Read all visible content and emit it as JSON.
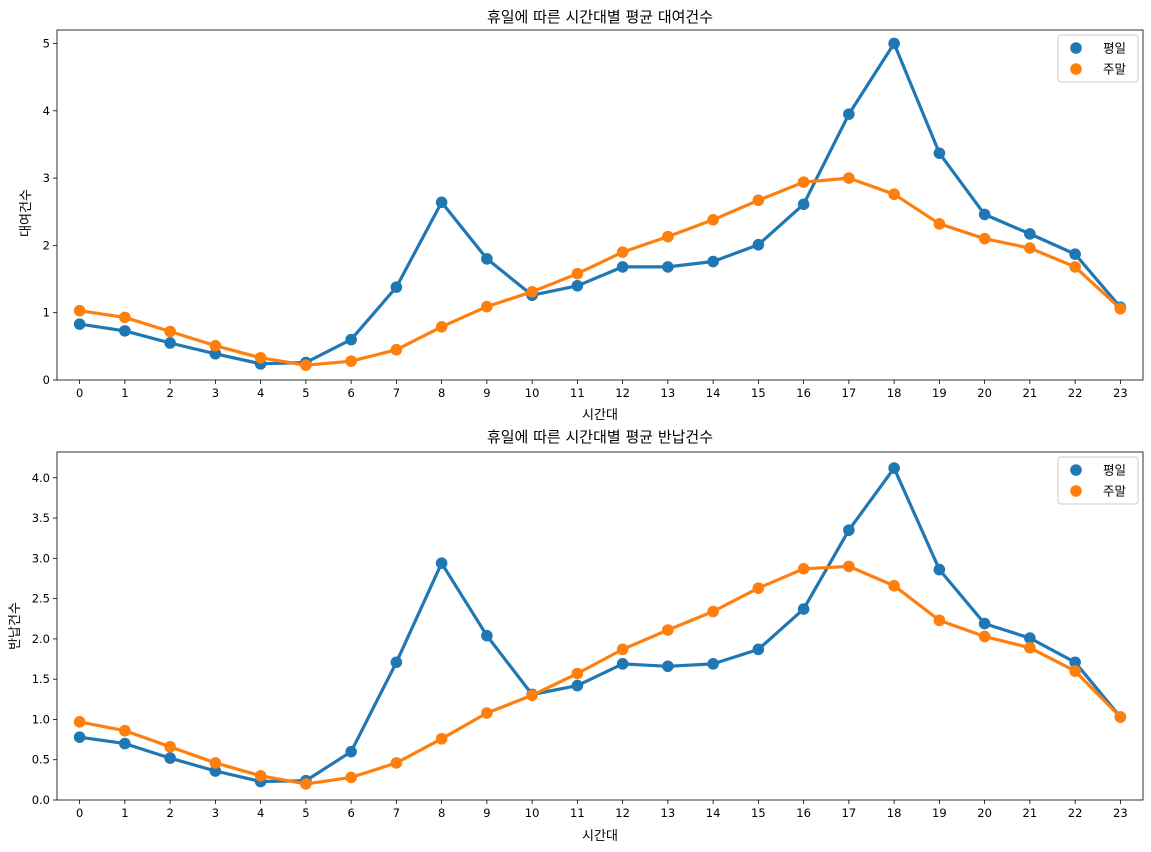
{
  "chart_data": [
    {
      "type": "line",
      "title": "휴일에 따른 시간대별 평균 대여건수",
      "xlabel": "시간대",
      "ylabel": "대여건수",
      "categories": [
        "0",
        "1",
        "2",
        "3",
        "4",
        "5",
        "6",
        "7",
        "8",
        "9",
        "10",
        "11",
        "12",
        "13",
        "14",
        "15",
        "16",
        "17",
        "18",
        "19",
        "20",
        "21",
        "22",
        "23"
      ],
      "ylim": [
        0,
        5.2
      ],
      "yticks": [
        "0",
        "1",
        "2",
        "3",
        "4",
        "5"
      ],
      "legend_position": "top-right",
      "series": [
        {
          "name": "평일",
          "color": "#1f77b4",
          "values": [
            0.83,
            0.73,
            0.55,
            0.39,
            0.24,
            0.26,
            0.6,
            1.38,
            2.64,
            1.8,
            1.26,
            1.4,
            1.68,
            1.68,
            1.76,
            2.01,
            2.61,
            3.95,
            5.0,
            3.37,
            2.46,
            2.17,
            1.87,
            1.08
          ]
        },
        {
          "name": "주말",
          "color": "#ff7f0e",
          "values": [
            1.03,
            0.93,
            0.72,
            0.51,
            0.33,
            0.22,
            0.28,
            0.45,
            0.79,
            1.09,
            1.31,
            1.58,
            1.9,
            2.13,
            2.38,
            2.67,
            2.94,
            3.0,
            2.76,
            2.32,
            2.1,
            1.96,
            1.68,
            1.06
          ]
        }
      ]
    },
    {
      "type": "line",
      "title": "휴일에 따른 시간대별 평균 반납건수",
      "xlabel": "시간대",
      "ylabel": "반납건수",
      "categories": [
        "0",
        "1",
        "2",
        "3",
        "4",
        "5",
        "6",
        "7",
        "8",
        "9",
        "10",
        "11",
        "12",
        "13",
        "14",
        "15",
        "16",
        "17",
        "18",
        "19",
        "20",
        "21",
        "22",
        "23"
      ],
      "ylim": [
        0,
        4.32
      ],
      "yticks": [
        "0.0",
        "0.5",
        "1.0",
        "1.5",
        "2.0",
        "2.5",
        "3.0",
        "3.5",
        "4.0"
      ],
      "legend_position": "top-right",
      "series": [
        {
          "name": "평일",
          "color": "#1f77b4",
          "values": [
            0.78,
            0.7,
            0.52,
            0.36,
            0.23,
            0.24,
            0.6,
            1.71,
            2.94,
            2.04,
            1.31,
            1.42,
            1.69,
            1.66,
            1.69,
            1.87,
            2.37,
            3.35,
            4.12,
            2.86,
            2.19,
            2.01,
            1.71,
            1.03
          ]
        },
        {
          "name": "주말",
          "color": "#ff7f0e",
          "values": [
            0.97,
            0.86,
            0.66,
            0.46,
            0.3,
            0.2,
            0.28,
            0.46,
            0.76,
            1.08,
            1.3,
            1.57,
            1.87,
            2.11,
            2.34,
            2.63,
            2.87,
            2.9,
            2.66,
            2.23,
            2.03,
            1.89,
            1.6,
            1.03
          ]
        }
      ]
    }
  ]
}
